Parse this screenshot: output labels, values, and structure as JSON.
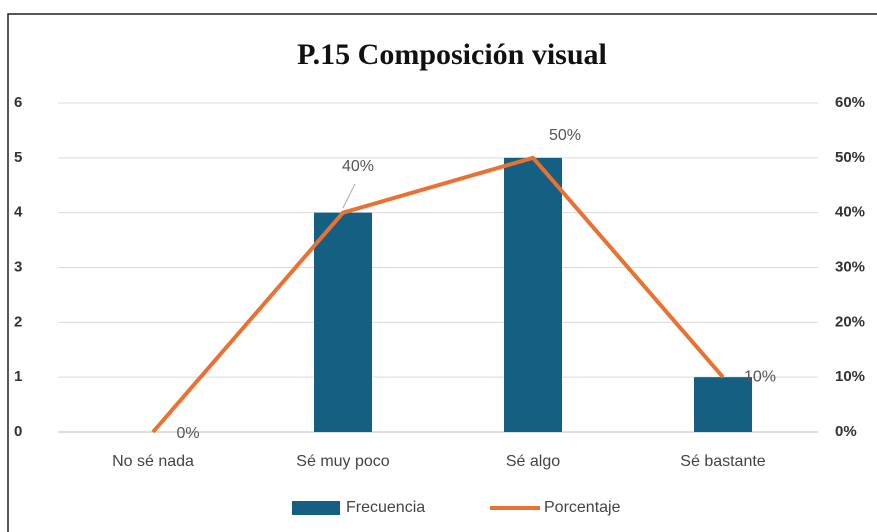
{
  "chart_data": {
    "type": "bar_line",
    "title": "P.15 Composición visual",
    "categories": [
      "No sé nada",
      "Sé muy poco",
      "Sé algo",
      "Sé bastante"
    ],
    "series": [
      {
        "name": "Frecuencia",
        "color": "#156082",
        "type": "bar",
        "values": [
          0,
          4,
          5,
          1
        ]
      },
      {
        "name": "Porcentaje",
        "color": "#e97132",
        "type": "line",
        "axis": "y2",
        "values": [
          0,
          40,
          50,
          10
        ],
        "value_labels": [
          "0%",
          "40%",
          "50%",
          "10%"
        ]
      }
    ],
    "ylim": [
      0,
      6
    ],
    "yticks": [
      0,
      1,
      2,
      3,
      4,
      5,
      6
    ],
    "y2lim": [
      0,
      60
    ],
    "y2ticks": [
      {
        "value": 0,
        "label": "0%"
      },
      {
        "value": 10,
        "label": "10%"
      },
      {
        "value": 20,
        "label": "20%"
      },
      {
        "value": 30,
        "label": "30%"
      },
      {
        "value": 40,
        "label": "40%"
      },
      {
        "value": 50,
        "label": "50%"
      },
      {
        "value": 60,
        "label": "60%"
      }
    ],
    "grid": true,
    "legend": "bottom"
  }
}
